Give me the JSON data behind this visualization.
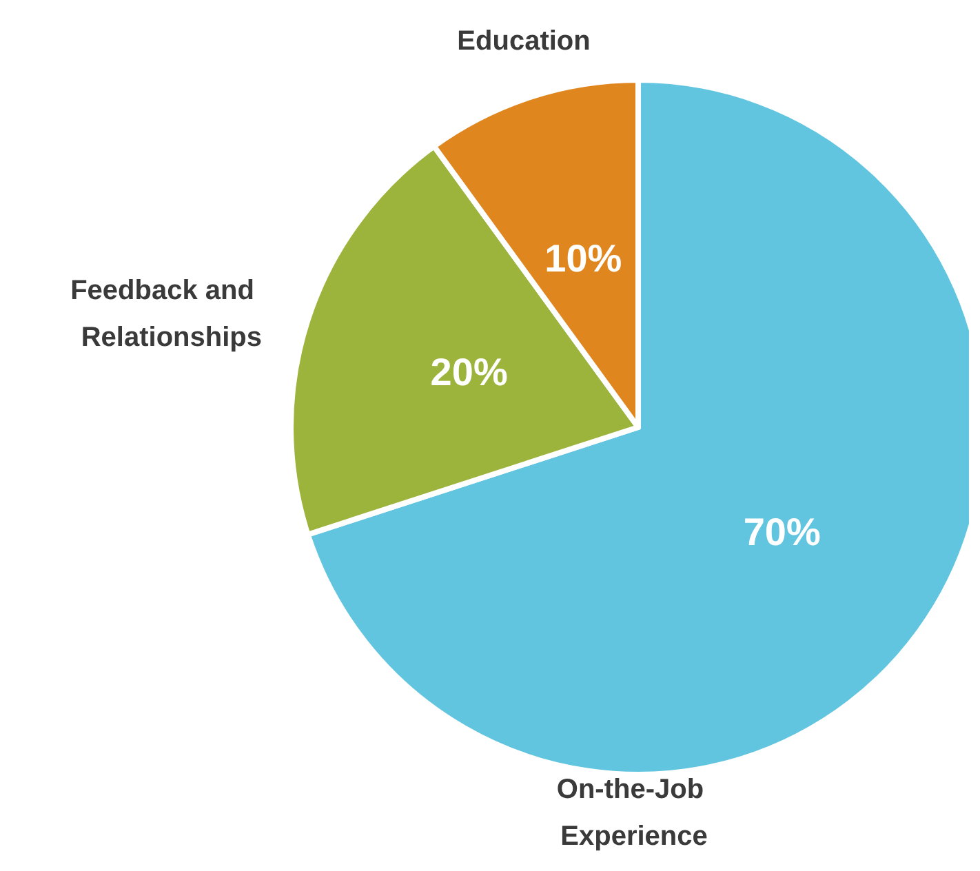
{
  "chart_data": {
    "type": "pie",
    "categories": [
      "On-the-Job Experience",
      "Feedback and Relationships",
      "Education"
    ],
    "values": [
      70,
      20,
      10
    ],
    "value_labels": [
      "70%",
      "20%",
      "10%"
    ],
    "colors": [
      "#62c5e0",
      "#9cb43b",
      "#e0861f"
    ],
    "legend": false
  }
}
